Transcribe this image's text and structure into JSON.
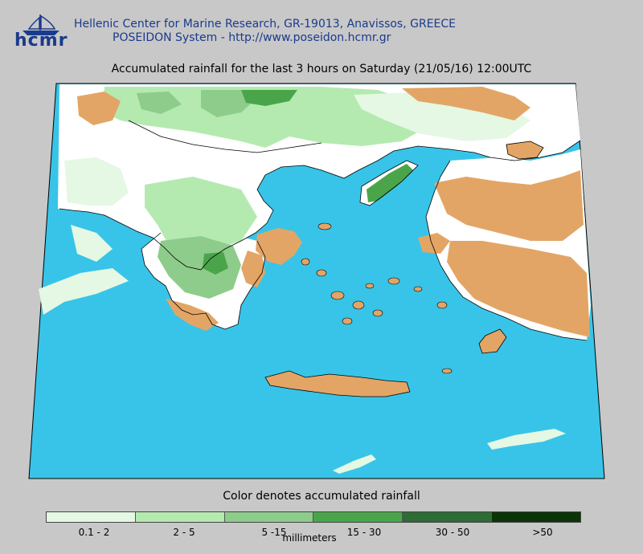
{
  "header": {
    "logo_text": "hcmr",
    "line1": "Hellenic Center for Marine Research, GR-19013, Anavissos, GREECE",
    "line2": "POSEIDON System - http://www.poseidon.hcmr.gr"
  },
  "map": {
    "title": "Accumulated rainfall for the last 3 hours on Saturday (21/05/16) 12:00UTC",
    "colors": {
      "sea": "#38c4e8",
      "land": "#ffffff",
      "dry_land": "#e3a565",
      "coast": "#000000"
    }
  },
  "legend": {
    "title": "Color denotes accumulated rainfall",
    "units": "millimeters",
    "classes": [
      {
        "label": "0.1 - 2",
        "color": "#e4f8e4"
      },
      {
        "label": "2 - 5",
        "color": "#b4eab0"
      },
      {
        "label": "5 -15",
        "color": "#8dcc8a"
      },
      {
        "label": "15 - 30",
        "color": "#4aa54a"
      },
      {
        "label": "30 - 50",
        "color": "#2e6b35"
      },
      {
        "label": ">50",
        "color": "#0d3309"
      }
    ]
  }
}
